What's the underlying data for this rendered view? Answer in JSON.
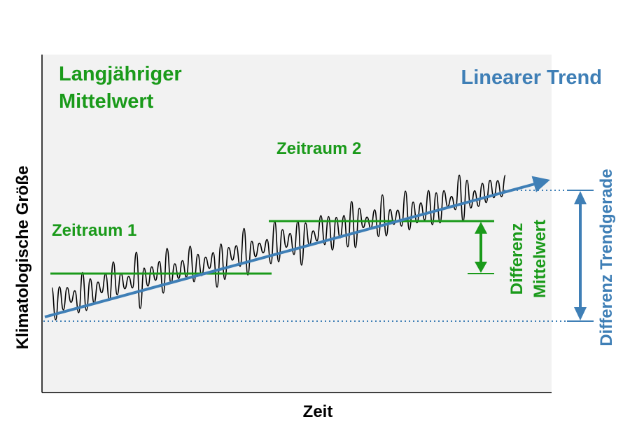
{
  "labels": {
    "mean_title_line1": "Langjähriger",
    "mean_title_line2": "Mittelwert",
    "trend_title": "Linearer Trend",
    "period1": "Zeitraum 1",
    "period2": "Zeitraum 2",
    "diff_mean_line1": "Differenz",
    "diff_mean_line2": "Mittelwert",
    "diff_trend": "Differenz Trendgerade",
    "x_axis": "Zeit",
    "y_axis": "Klimatologische Größe"
  },
  "colors": {
    "green": "#1a9a1a",
    "blue": "#3f7fb6",
    "series": "#000000",
    "plot_bg": "#f2f2f2"
  }
}
